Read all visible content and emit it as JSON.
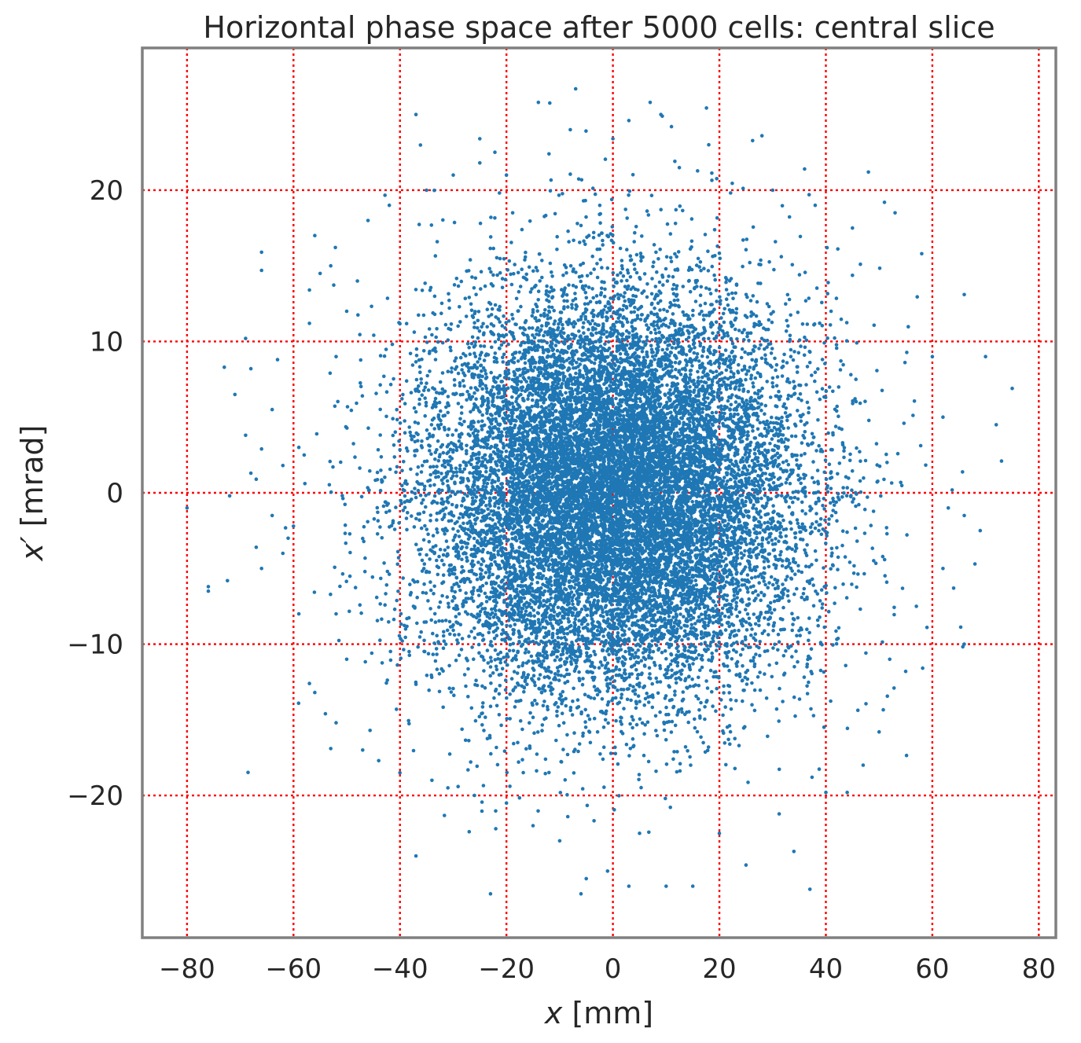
{
  "chart_data": {
    "type": "scatter",
    "title": "Horizontal phase space after 5000 cells: central slice",
    "xlabel_italic": "x",
    "xlabel_unit": " [mm]",
    "ylabel_italic": "x′",
    "ylabel_unit": " [mrad]",
    "xlim": [
      -88.4,
      83.2
    ],
    "ylim": [
      -29.4,
      29.4
    ],
    "xticks": [
      -80,
      -60,
      -40,
      -20,
      0,
      20,
      40,
      60,
      80
    ],
    "yticks": [
      -20,
      -10,
      0,
      10,
      20
    ],
    "xtick_labels": [
      "−80",
      "−60",
      "−40",
      "−20",
      "0",
      "20",
      "40",
      "60",
      "80"
    ],
    "ytick_labels": [
      "−20",
      "−10",
      "0",
      "10",
      "20"
    ],
    "grid": true,
    "grid_color": "#ff0000",
    "grid_style": "dotted",
    "point_color": "#1f77b4",
    "frame_color": "#808080",
    "series": [
      {
        "points": [
          [
            -80,
            -1.0
          ],
          [
            -76,
            -6.5
          ],
          [
            -76,
            -6.2
          ],
          [
            -72,
            -0.2
          ],
          [
            -73,
            8.3
          ],
          [
            -71,
            6.5
          ],
          [
            -69,
            10.2
          ],
          [
            -68,
            8.2
          ],
          [
            -69,
            3.8
          ],
          [
            -68,
            1.3
          ],
          [
            -67,
            0.9
          ],
          [
            -66,
            2.9
          ],
          [
            -67,
            -3.6
          ],
          [
            -66,
            -5.0
          ],
          [
            -66,
            15.9
          ],
          [
            -66,
            14.7
          ],
          [
            -63,
            8.8
          ],
          [
            -62,
            1.8
          ],
          [
            -61,
            -3.0
          ],
          [
            -60,
            -2.2
          ],
          [
            -59,
            3.0
          ],
          [
            -58,
            2.5
          ],
          [
            -59,
            -8.0
          ],
          [
            -57,
            11.2
          ],
          [
            -57,
            13.4
          ],
          [
            -56,
            17.0
          ],
          [
            -55,
            14.5
          ],
          [
            -53,
            15.0
          ],
          [
            -54,
            -14.6
          ],
          [
            -52,
            -15.2
          ],
          [
            -53,
            -16.9
          ],
          [
            -57,
            -12.6
          ],
          [
            -56,
            -13.2
          ],
          [
            -37,
            25.0
          ],
          [
            -37,
            -24.0
          ],
          [
            -27,
            -22.4
          ],
          [
            -23,
            -26.5
          ],
          [
            -22,
            -22.2
          ],
          [
            -6,
            -26.5
          ],
          [
            -5,
            -25.5
          ],
          [
            -1,
            -25.0
          ],
          [
            3,
            -26.0
          ],
          [
            10,
            -26.0
          ],
          [
            15,
            -26.0
          ],
          [
            25,
            -24.6
          ],
          [
            34,
            -23.7
          ],
          [
            37,
            -26.2
          ],
          [
            -7,
            26.7
          ],
          [
            -8,
            24.0
          ],
          [
            7,
            25.8
          ],
          [
            3,
            24.6
          ],
          [
            9,
            25.0
          ],
          [
            11,
            24.2
          ],
          [
            -25,
            23.4
          ],
          [
            -25,
            21.8
          ],
          [
            -14,
            25.8
          ],
          [
            -12,
            22.4
          ],
          [
            0,
            23.4
          ],
          [
            18,
            23.0
          ],
          [
            28,
            23.6
          ],
          [
            36,
            21.4
          ],
          [
            48,
            21.2
          ],
          [
            51,
            19.2
          ],
          [
            53,
            18.5
          ],
          [
            58,
            15.8
          ],
          [
            66,
            13.1
          ],
          [
            70,
            9.0
          ],
          [
            72,
            4.5
          ],
          [
            75,
            6.9
          ],
          [
            73,
            2.1
          ],
          [
            69,
            -2.5
          ],
          [
            66,
            -1.5
          ],
          [
            68,
            -4.7
          ],
          [
            66,
            -10.0
          ],
          [
            64,
            -6.3
          ],
          [
            59,
            -8.9
          ],
          [
            57,
            -7.5
          ],
          [
            55,
            -11.8
          ],
          [
            52,
            -11.0
          ],
          [
            50,
            -15.8
          ],
          [
            47,
            -18.0
          ],
          [
            44,
            -19.8
          ],
          [
            40,
            -19.8
          ],
          [
            -44,
            -17.7
          ],
          [
            -47,
            -17.0
          ],
          [
            -40,
            -18.5
          ],
          [
            -34,
            -19.0
          ],
          [
            -31,
            -19.5
          ],
          [
            -26,
            -20.0
          ],
          [
            -20,
            -20.5
          ],
          [
            -15,
            -22.0
          ],
          [
            -10,
            -23.0
          ],
          [
            5,
            -22.5
          ],
          [
            20,
            -22.5
          ],
          [
            -46,
            18.0
          ],
          [
            -42,
            19.0
          ],
          [
            -35,
            20.0
          ],
          [
            -30,
            21.0
          ],
          [
            -20,
            21.0
          ],
          [
            30,
            20.0
          ],
          [
            38,
            19.0
          ],
          [
            45,
            17.5
          ],
          [
            -48,
            14.0
          ],
          [
            -50,
            12.0
          ],
          [
            -52,
            9.0
          ],
          [
            -52,
            -8.0
          ],
          [
            -50,
            -11.0
          ],
          [
            60,
            9.0
          ],
          [
            62,
            5.0
          ],
          [
            63,
            -1.0
          ],
          [
            62,
            -5.0
          ],
          [
            -62,
            -4.0
          ],
          [
            -64,
            -1.5
          ],
          [
            -64,
            5.5
          ]
        ]
      }
    ],
    "generated_points": {
      "count": 16000,
      "distribution": "gaussian",
      "x_mean": 0,
      "x_std": 17.5,
      "y_mean": 0,
      "y_std": 6.6,
      "x_range": [
        -78,
        76
      ],
      "y_range": [
        -27,
        27
      ]
    }
  }
}
